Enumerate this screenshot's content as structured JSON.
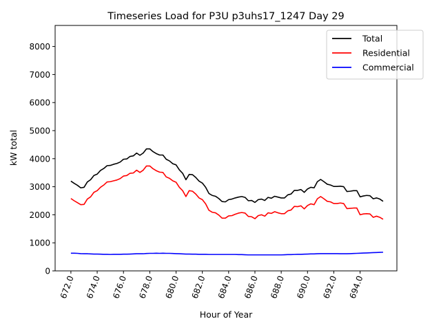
{
  "chart_data": {
    "type": "line",
    "title": "Timeseries Load for P3U p3uhs17_1247  Day 29",
    "xlabel": "Hour of Year",
    "ylabel": "kW total",
    "xlim": [
      670.8,
      696.8
    ],
    "ylim": [
      0,
      8750
    ],
    "x_ticks": [
      672,
      674,
      676,
      678,
      680,
      682,
      684,
      686,
      688,
      690,
      692,
      694
    ],
    "x_tick_labels": [
      "672.0",
      "674.0",
      "676.0",
      "678.0",
      "680.0",
      "682.0",
      "684.0",
      "686.0",
      "688.0",
      "690.0",
      "692.0",
      "694.0"
    ],
    "y_ticks": [
      0,
      1000,
      2000,
      3000,
      4000,
      5000,
      6000,
      7000,
      8000
    ],
    "y_tick_labels": [
      "0",
      "1000",
      "2000",
      "3000",
      "4000",
      "5000",
      "6000",
      "7000",
      "8000"
    ],
    "legend_position": "top-right",
    "grid": false,
    "x_start": 672,
    "x_step": 0.25,
    "series": [
      {
        "name": "Total",
        "color": "#000000",
        "values": [
          3200,
          3120,
          3050,
          2960,
          2980,
          3170,
          3250,
          3400,
          3450,
          3580,
          3650,
          3750,
          3760,
          3800,
          3830,
          3880,
          3980,
          3990,
          4080,
          4100,
          4200,
          4120,
          4200,
          4350,
          4350,
          4250,
          4180,
          4130,
          4130,
          3980,
          3920,
          3820,
          3780,
          3600,
          3480,
          3250,
          3440,
          3430,
          3330,
          3200,
          3130,
          2980,
          2760,
          2690,
          2660,
          2580,
          2470,
          2460,
          2540,
          2560,
          2600,
          2630,
          2650,
          2620,
          2500,
          2510,
          2440,
          2540,
          2560,
          2510,
          2620,
          2590,
          2660,
          2630,
          2600,
          2600,
          2710,
          2740,
          2870,
          2870,
          2900,
          2800,
          2920,
          2980,
          2960,
          3180,
          3260,
          3180,
          3090,
          3060,
          3010,
          3010,
          3020,
          3000,
          2830,
          2840,
          2860,
          2860,
          2640,
          2670,
          2690,
          2680,
          2570,
          2600,
          2560,
          2480
        ]
      },
      {
        "name": "Residential",
        "color": "#ff0000",
        "values": [
          2580,
          2500,
          2430,
          2360,
          2370,
          2560,
          2640,
          2800,
          2860,
          2980,
          3060,
          3170,
          3180,
          3210,
          3240,
          3290,
          3380,
          3400,
          3480,
          3490,
          3590,
          3510,
          3590,
          3740,
          3740,
          3640,
          3570,
          3520,
          3510,
          3350,
          3300,
          3210,
          3160,
          2980,
          2860,
          2650,
          2860,
          2840,
          2740,
          2600,
          2540,
          2390,
          2160,
          2090,
          2070,
          1990,
          1880,
          1880,
          1960,
          1970,
          2020,
          2060,
          2080,
          2060,
          1940,
          1930,
          1860,
          1970,
          2000,
          1950,
          2070,
          2050,
          2110,
          2070,
          2040,
          2040,
          2140,
          2170,
          2300,
          2290,
          2320,
          2210,
          2330,
          2390,
          2360,
          2570,
          2650,
          2570,
          2480,
          2460,
          2400,
          2400,
          2420,
          2400,
          2220,
          2230,
          2240,
          2240,
          2000,
          2030,
          2040,
          2030,
          1910,
          1950,
          1910,
          1840
        ]
      },
      {
        "name": "Commercial",
        "color": "#0000ff",
        "values": [
          630,
          630,
          625,
          615,
          610,
          610,
          605,
          600,
          600,
          595,
          590,
          590,
          585,
          590,
          590,
          590,
          595,
          595,
          600,
          605,
          610,
          610,
          610,
          620,
          625,
          625,
          630,
          625,
          630,
          625,
          625,
          620,
          615,
          610,
          605,
          600,
          600,
          595,
          595,
          590,
          590,
          590,
          585,
          585,
          585,
          585,
          585,
          585,
          585,
          585,
          585,
          580,
          580,
          575,
          570,
          570,
          570,
          570,
          570,
          570,
          570,
          570,
          570,
          570,
          570,
          575,
          580,
          580,
          585,
          590,
          590,
          595,
          600,
          605,
          605,
          610,
          615,
          615,
          615,
          615,
          615,
          615,
          610,
          610,
          610,
          615,
          620,
          625,
          630,
          635,
          640,
          645,
          650,
          655,
          660,
          665
        ]
      }
    ]
  }
}
